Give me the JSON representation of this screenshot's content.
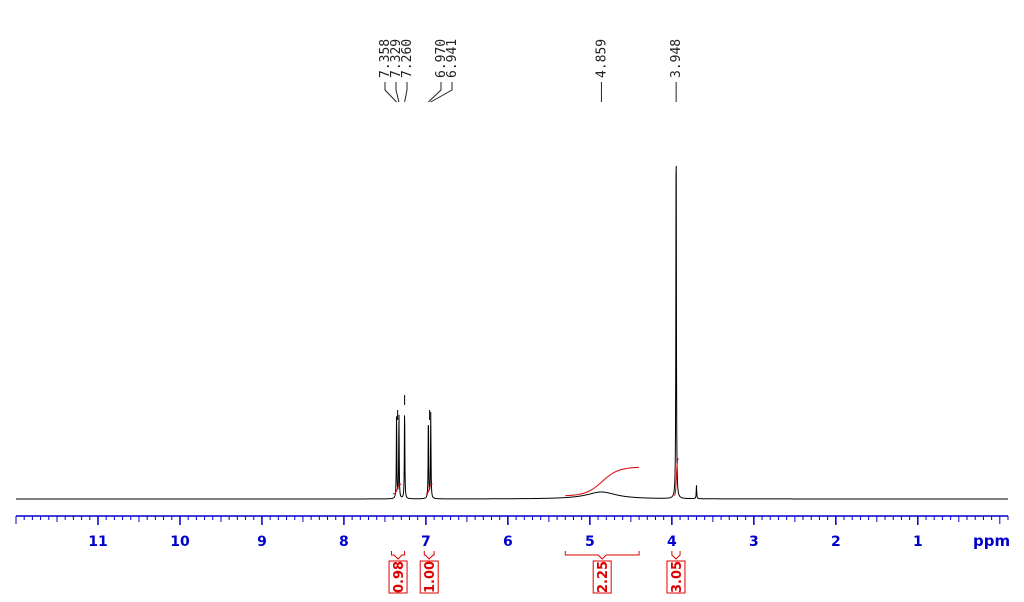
{
  "chart_data": {
    "type": "line",
    "title": "",
    "xlabel": "ppm",
    "ylabel": "",
    "xlim": [
      12.0,
      -0.1
    ],
    "x_reversed": true,
    "grid": false,
    "ticks": [
      11,
      10,
      9,
      8,
      7,
      6,
      5,
      4,
      3,
      2,
      1
    ],
    "tick_labels": [
      "11",
      "10",
      "9",
      "8",
      "7",
      "6",
      "5",
      "4",
      "3",
      "2",
      "1"
    ],
    "peak_labels": [
      {
        "ppm": 7.358,
        "text": "7.358"
      },
      {
        "ppm": 7.329,
        "text": "7.329"
      },
      {
        "ppm": 7.26,
        "text": "7.260"
      },
      {
        "ppm": 6.97,
        "text": "6.970"
      },
      {
        "ppm": 6.941,
        "text": "6.941"
      },
      {
        "ppm": 4.859,
        "text": "4.859"
      },
      {
        "ppm": 3.948,
        "text": "3.948"
      }
    ],
    "peaks": [
      {
        "ppm": 7.358,
        "height": 0.22
      },
      {
        "ppm": 7.329,
        "height": 0.22
      },
      {
        "ppm": 7.26,
        "height": 0.24
      },
      {
        "ppm": 6.97,
        "height": 0.22
      },
      {
        "ppm": 6.941,
        "height": 0.22
      },
      {
        "ppm": 4.859,
        "height": 0.018,
        "broad": true
      },
      {
        "ppm": 3.948,
        "height": 1.0
      },
      {
        "ppm": 3.7,
        "height": 0.035
      }
    ],
    "integrals": [
      {
        "from": 7.42,
        "to": 7.26,
        "value": 0.98,
        "text": "0.98"
      },
      {
        "from": 7.02,
        "to": 6.9,
        "value": 1.0,
        "text": "1.00"
      },
      {
        "from": 5.3,
        "to": 4.4,
        "value": 2.25,
        "text": "2.25"
      },
      {
        "from": 4.0,
        "to": 3.9,
        "value": 3.05,
        "text": "3.05"
      }
    ],
    "colors": {
      "spectrum": "#000000",
      "axis": "#0000cc",
      "integral": "#dd0000",
      "peak_label": "#222222"
    }
  }
}
